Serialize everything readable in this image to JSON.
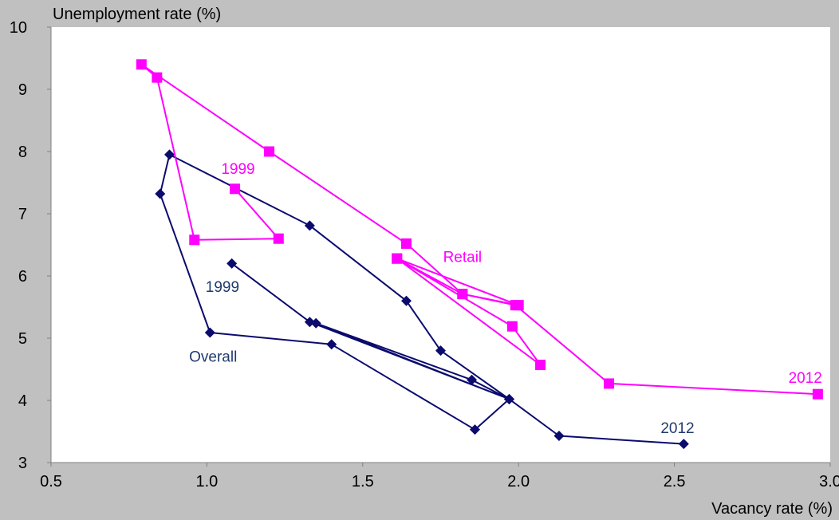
{
  "chart_data": {
    "type": "line",
    "title": "",
    "ylabel": "Unemployment rate (%)",
    "xlabel": "Vacancy rate (%)",
    "xlim": [
      0.5,
      3.0
    ],
    "ylim": [
      3,
      10
    ],
    "xticks": [
      "0.5",
      "1.0",
      "1.5",
      "2.0",
      "2.5",
      "3.0"
    ],
    "xtick_values": [
      0.5,
      1.0,
      1.5,
      2.0,
      2.5,
      3.0
    ],
    "yticks": [
      "3",
      "4",
      "5",
      "6",
      "7",
      "8",
      "9",
      "10"
    ],
    "ytick_values": [
      3,
      4,
      5,
      6,
      7,
      8,
      9,
      10
    ],
    "grid": false,
    "legend": "none",
    "series": [
      {
        "key": "overall",
        "color": "#0b0b6e",
        "marker": "diamond",
        "points": [
          {
            "x": 1.08,
            "y": 6.2
          },
          {
            "x": 1.33,
            "y": 5.26
          },
          {
            "x": 1.97,
            "y": 4.02
          },
          {
            "x": 1.35,
            "y": 5.24
          },
          {
            "x": 1.85,
            "y": 4.33
          },
          {
            "x": 1.97,
            "y": 4.02
          },
          {
            "x": 1.86,
            "y": 3.53
          },
          {
            "x": 1.4,
            "y": 4.9
          },
          {
            "x": 1.01,
            "y": 5.09
          },
          {
            "x": 0.85,
            "y": 7.32
          },
          {
            "x": 0.88,
            "y": 7.95
          },
          {
            "x": 1.33,
            "y": 6.81
          },
          {
            "x": 1.64,
            "y": 5.6
          },
          {
            "x": 1.75,
            "y": 4.8
          },
          {
            "x": 1.97,
            "y": 4.02
          },
          {
            "x": 2.13,
            "y": 3.43
          },
          {
            "x": 2.53,
            "y": 3.3
          }
        ]
      },
      {
        "key": "retail",
        "color": "#ff00ff",
        "marker": "square",
        "points": [
          {
            "x": 1.09,
            "y": 7.4
          },
          {
            "x": 1.23,
            "y": 6.6
          },
          {
            "x": 0.96,
            "y": 6.58
          },
          {
            "x": 0.84,
            "y": 9.19
          },
          {
            "x": 0.79,
            "y": 9.4
          },
          {
            "x": 1.2,
            "y": 8.0
          },
          {
            "x": 1.64,
            "y": 6.52
          },
          {
            "x": 1.82,
            "y": 5.71
          },
          {
            "x": 2.0,
            "y": 5.53
          },
          {
            "x": 1.61,
            "y": 6.28
          },
          {
            "x": 1.98,
            "y": 5.19
          },
          {
            "x": 2.07,
            "y": 4.57
          },
          {
            "x": 1.61,
            "y": 6.28
          },
          {
            "x": 1.82,
            "y": 5.71
          },
          {
            "x": 1.99,
            "y": 5.53
          },
          {
            "x": 2.29,
            "y": 4.27
          },
          {
            "x": 2.96,
            "y": 4.1
          }
        ]
      }
    ],
    "annotations": [
      {
        "key": "retail-1999",
        "text": "1999",
        "x": 1.1,
        "y": 7.72,
        "color": "#ff00ff"
      },
      {
        "key": "retail-label",
        "text": "Retail",
        "x": 1.82,
        "y": 6.3,
        "color": "#ff00ff"
      },
      {
        "key": "retail-2012",
        "text": "2012",
        "x": 2.92,
        "y": 4.36,
        "color": "#ff00ff"
      },
      {
        "key": "overall-1999",
        "text": "1999",
        "x": 1.05,
        "y": 5.82,
        "color": "#1f3a6e"
      },
      {
        "key": "overall-label",
        "text": "Overall",
        "x": 1.02,
        "y": 4.7,
        "color": "#1f3a6e"
      },
      {
        "key": "overall-2012",
        "text": "2012",
        "x": 2.51,
        "y": 3.55,
        "color": "#1f3a6e"
      }
    ]
  }
}
